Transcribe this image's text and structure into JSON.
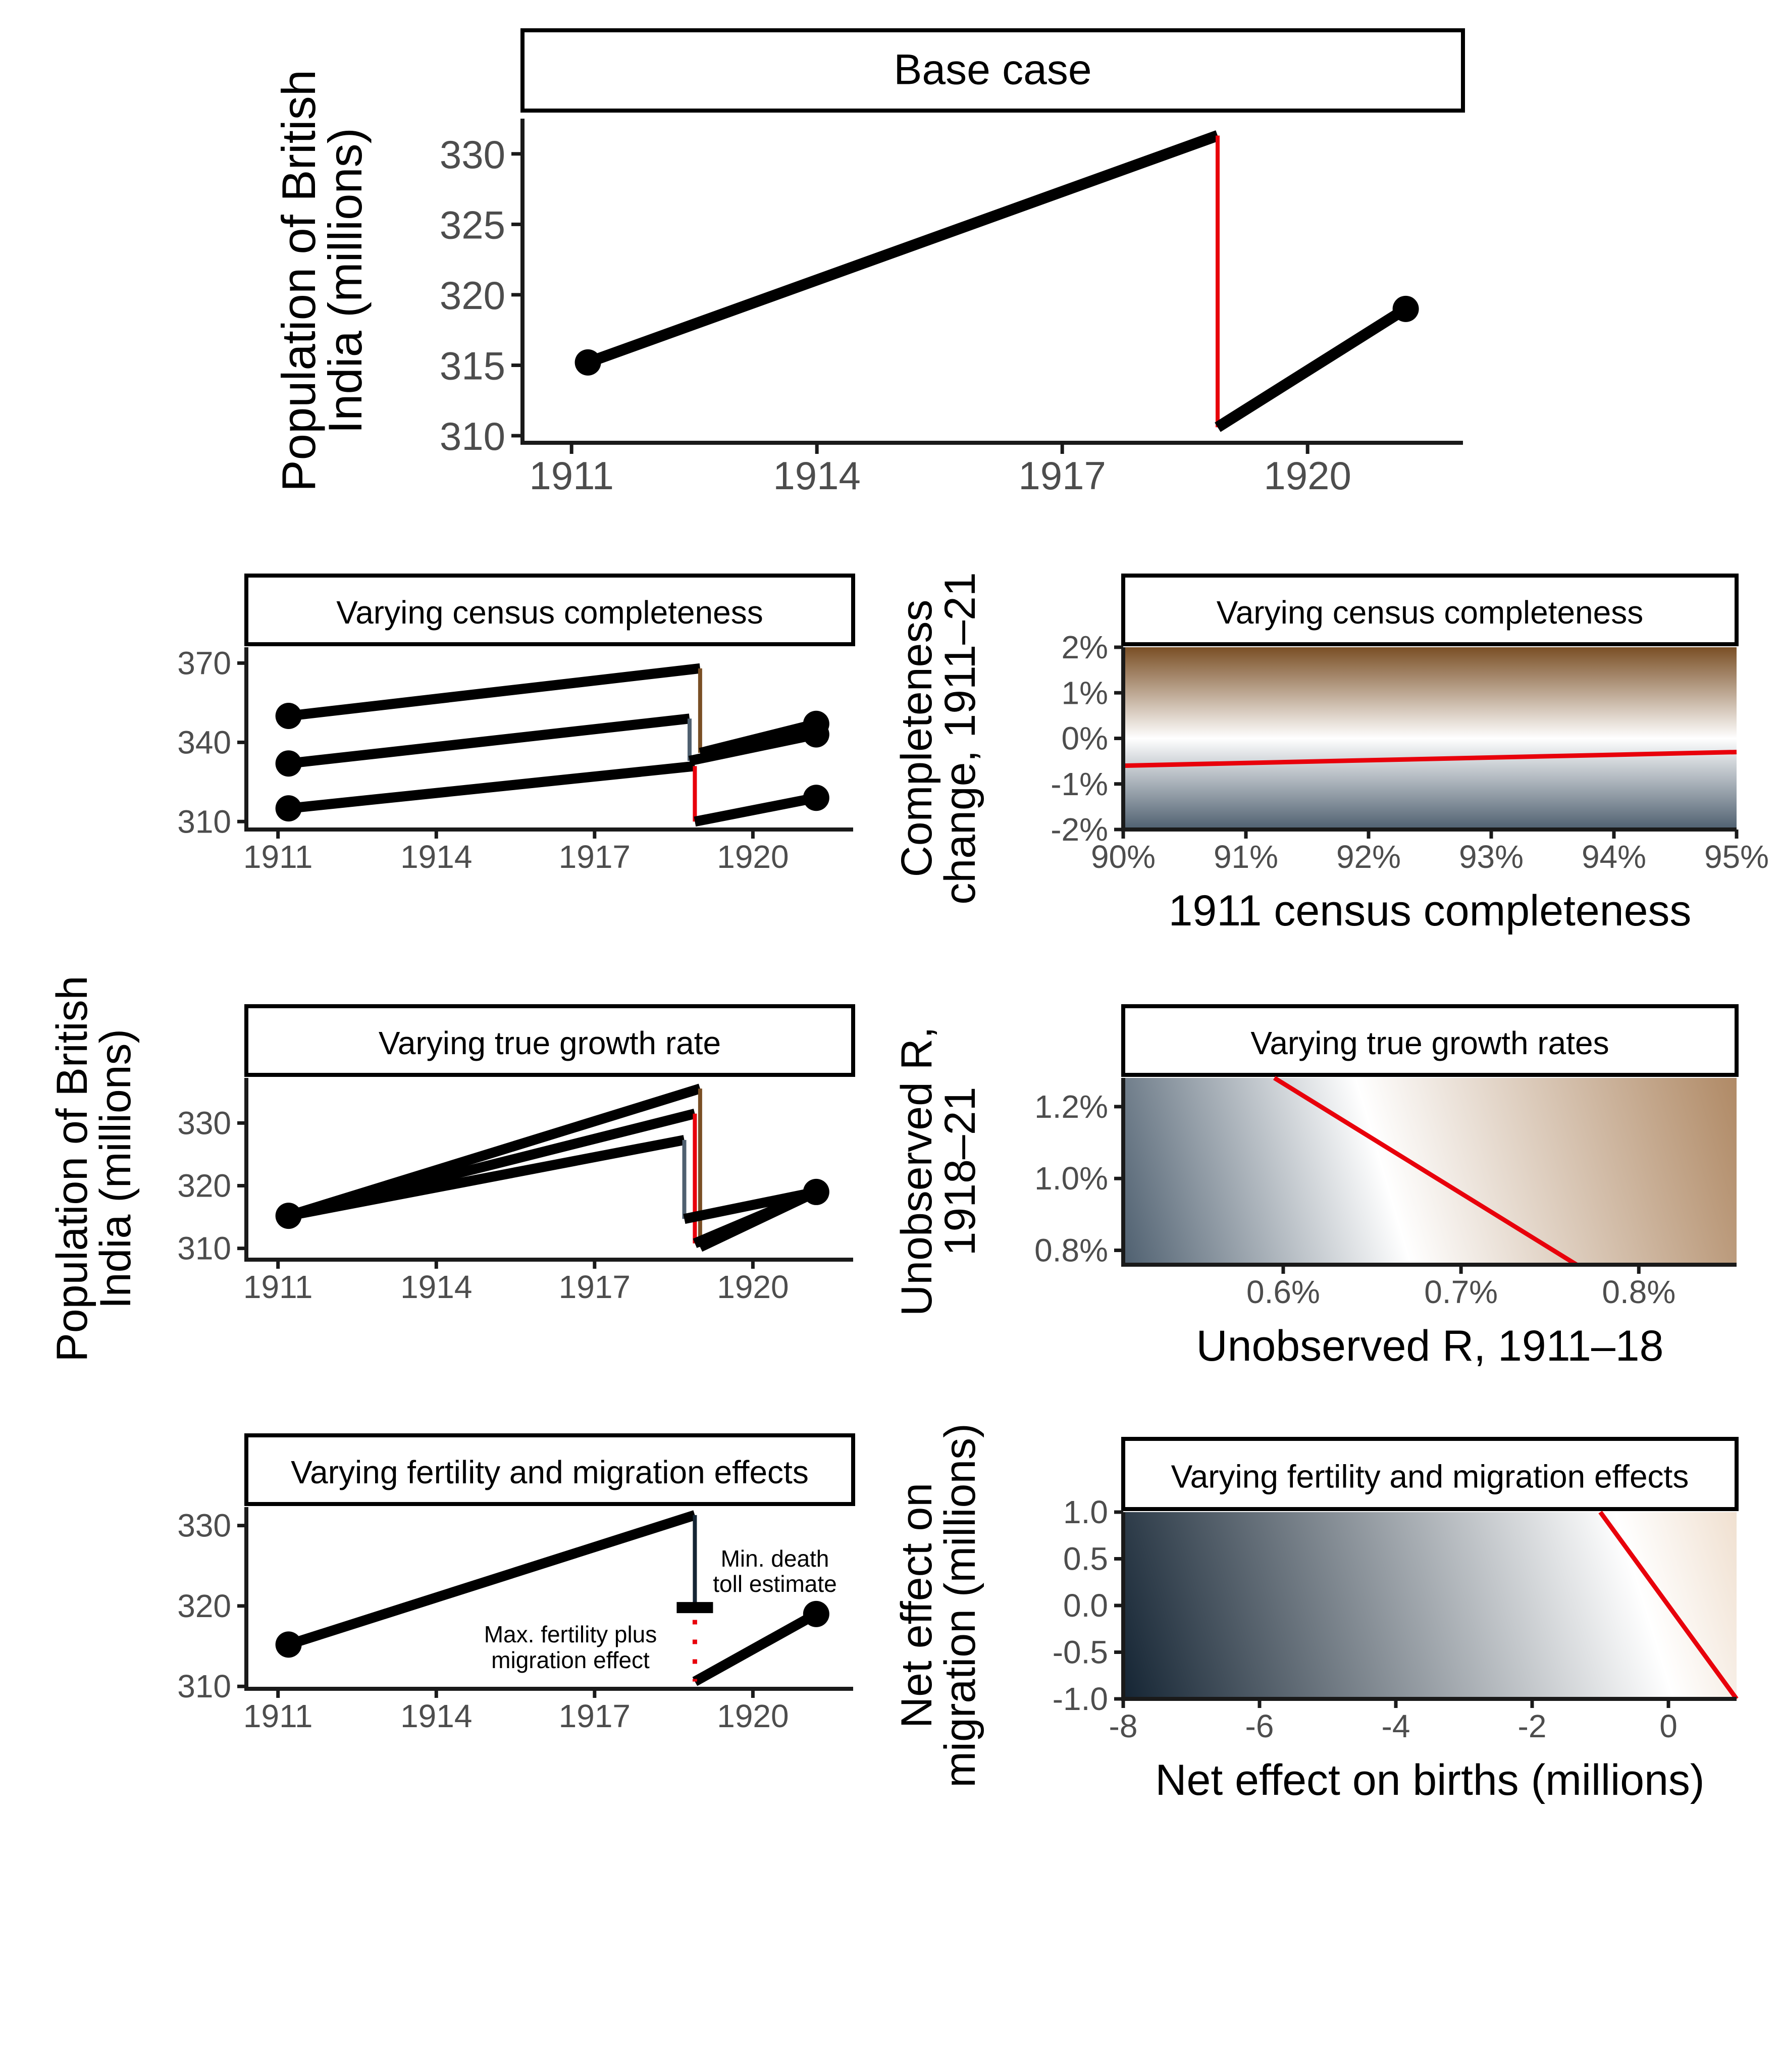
{
  "colors": {
    "line": "#000000",
    "drop": "#e8000b",
    "brown": "#7a4f25",
    "slate": "#4f6070",
    "navy": "#142433",
    "axis": "#1a1a1a",
    "tick_label": "#4d4d4d"
  },
  "chart_data": [
    {
      "id": "base",
      "type": "line",
      "strip_title": "Base case",
      "ylabel_lines": [
        "Population of British",
        "India (millions)"
      ],
      "xlim": [
        1910.4,
        1921.9
      ],
      "ylim": [
        309.5,
        332.5
      ],
      "x_ticks": [
        1911,
        1914,
        1917,
        1920
      ],
      "y_ticks": [
        310,
        315,
        320,
        325,
        330
      ],
      "x_tick_labels": [
        "1911",
        "1914",
        "1917",
        "1920"
      ],
      "y_tick_labels": [
        "310",
        "315",
        "320",
        "325",
        "330"
      ],
      "series": [
        {
          "points": [
            [
              1911.2,
              315.2
            ],
            [
              1918.9,
              331.3
            ]
          ],
          "role": "growth"
        },
        {
          "points": [
            [
              1918.9,
              331.3
            ],
            [
              1918.9,
              310.6
            ]
          ],
          "role": "drop"
        },
        {
          "points": [
            [
              1918.9,
              310.6
            ],
            [
              1921.2,
              319.0
            ]
          ],
          "role": "growth"
        }
      ],
      "markers": [
        [
          1911.2,
          315.2
        ],
        [
          1921.2,
          319.0
        ]
      ]
    },
    {
      "id": "completeness",
      "type": "line",
      "strip_title": "Varying census completeness",
      "xlim": [
        1910.4,
        1921.9
      ],
      "ylim": [
        307,
        376
      ],
      "x_ticks": [
        1911,
        1914,
        1917,
        1920
      ],
      "y_ticks": [
        310,
        340,
        370
      ],
      "x_tick_labels": [
        "1911",
        "1914",
        "1917",
        "1920"
      ],
      "y_tick_labels": [
        "310",
        "340",
        "370"
      ],
      "series": [
        {
          "points": [
            [
              1911.2,
              350
            ],
            [
              1919.0,
              368
            ]
          ],
          "role": "growth"
        },
        {
          "points": [
            [
              1919.0,
              368
            ],
            [
              1919.0,
              336
            ]
          ],
          "role": "brown"
        },
        {
          "points": [
            [
              1919.0,
              336
            ],
            [
              1921.2,
              347
            ]
          ],
          "role": "growth"
        },
        {
          "points": [
            [
              1911.2,
              332
            ],
            [
              1918.8,
              349
            ]
          ],
          "role": "growth"
        },
        {
          "points": [
            [
              1918.8,
              349
            ],
            [
              1918.8,
              333
            ]
          ],
          "role": "slate"
        },
        {
          "points": [
            [
              1918.8,
              333
            ],
            [
              1921.2,
              343
            ]
          ],
          "role": "growth"
        },
        {
          "points": [
            [
              1911.2,
              315
            ],
            [
              1918.9,
              331
            ]
          ],
          "role": "growth"
        },
        {
          "points": [
            [
              1918.9,
              331
            ],
            [
              1918.9,
              310
            ]
          ],
          "role": "drop"
        },
        {
          "points": [
            [
              1918.9,
              310
            ],
            [
              1921.2,
              319
            ]
          ],
          "role": "growth"
        }
      ],
      "markers": [
        [
          1911.2,
          350
        ],
        [
          1911.2,
          332
        ],
        [
          1911.2,
          315
        ],
        [
          1921.2,
          347
        ],
        [
          1921.2,
          343
        ],
        [
          1921.2,
          319
        ]
      ]
    },
    {
      "id": "growth",
      "type": "line",
      "strip_title": "Varying true growth rate",
      "xlim": [
        1910.4,
        1921.9
      ],
      "ylim": [
        308.2,
        337.2
      ],
      "x_ticks": [
        1911,
        1914,
        1917,
        1920
      ],
      "y_ticks": [
        310,
        320,
        330
      ],
      "x_tick_labels": [
        "1911",
        "1914",
        "1917",
        "1920"
      ],
      "y_tick_labels": [
        "310",
        "320",
        "330"
      ],
      "series": [
        {
          "points": [
            [
              1911.2,
              315.2
            ],
            [
              1919.0,
              335.5
            ]
          ],
          "role": "growth"
        },
        {
          "points": [
            [
              1919.0,
              335.5
            ],
            [
              1919.0,
              310.2
            ]
          ],
          "role": "brown"
        },
        {
          "points": [
            [
              1919.0,
              310.2
            ],
            [
              1921.2,
              319.0
            ]
          ],
          "role": "growth"
        },
        {
          "points": [
            [
              1911.2,
              315.2
            ],
            [
              1918.9,
              331.5
            ]
          ],
          "role": "growth"
        },
        {
          "points": [
            [
              1918.9,
              331.5
            ],
            [
              1918.9,
              310.8
            ]
          ],
          "role": "drop"
        },
        {
          "points": [
            [
              1918.9,
              310.8
            ],
            [
              1921.2,
              319.0
            ]
          ],
          "role": "growth"
        },
        {
          "points": [
            [
              1911.2,
              315.2
            ],
            [
              1918.7,
              327.3
            ]
          ],
          "role": "growth"
        },
        {
          "points": [
            [
              1918.7,
              327.3
            ],
            [
              1918.7,
              314.7
            ]
          ],
          "role": "slate"
        },
        {
          "points": [
            [
              1918.7,
              314.7
            ],
            [
              1921.2,
              319.0
            ]
          ],
          "role": "growth"
        }
      ],
      "markers": [
        [
          1911.2,
          315.2
        ],
        [
          1921.2,
          319.0
        ]
      ]
    },
    {
      "id": "fertility",
      "type": "line",
      "strip_title": "Varying fertility and migration effects",
      "xlim": [
        1910.4,
        1921.9
      ],
      "ylim": [
        309.7,
        332.3
      ],
      "x_ticks": [
        1911,
        1914,
        1917,
        1920
      ],
      "y_ticks": [
        310,
        320,
        330
      ],
      "x_tick_labels": [
        "1911",
        "1914",
        "1917",
        "1920"
      ],
      "y_tick_labels": [
        "310",
        "320",
        "330"
      ],
      "series": [
        {
          "points": [
            [
              1911.2,
              315.2
            ],
            [
              1918.9,
              331.3
            ]
          ],
          "role": "growth"
        },
        {
          "points": [
            [
              1918.9,
              331.3
            ],
            [
              1918.9,
              319.8
            ]
          ],
          "role": "navy"
        },
        {
          "points": [
            [
              1918.9,
              310.6
            ],
            [
              1921.2,
              319.0
            ]
          ],
          "role": "growth"
        }
      ],
      "markers": [
        [
          1911.2,
          315.2
        ],
        [
          1921.2,
          319.0
        ]
      ],
      "bar_y": 319.8,
      "dotted": {
        "x": 1918.9,
        "y_from": 319.4,
        "y_to": 310.6
      },
      "annotations": {
        "min_death": [
          "Min. death",
          "toll estimate"
        ],
        "max_fertility": [
          "Max. fertility plus",
          "migration effect"
        ]
      }
    },
    {
      "id": "heat_completeness",
      "type": "heatmap",
      "strip_title": "Varying census completeness",
      "xlabel": "1911 census completeness",
      "ylabel_lines": [
        "Completeness",
        "change, 1911–21"
      ],
      "xlim": [
        90,
        95
      ],
      "ylim": [
        -2,
        2
      ],
      "x_ticks": [
        90,
        91,
        92,
        93,
        94,
        95
      ],
      "y_ticks": [
        -2,
        -1,
        0,
        1,
        2
      ],
      "x_tick_labels": [
        "90%",
        "91%",
        "92%",
        "93%",
        "94%",
        "95%"
      ],
      "y_tick_labels": [
        "-2%",
        "-1%",
        "0%",
        "1%",
        "2%"
      ],
      "contour": [
        [
          90,
          -0.6
        ],
        [
          95,
          -0.3
        ]
      ]
    },
    {
      "id": "heat_growth",
      "type": "heatmap",
      "strip_title": "Varying true growth rates",
      "xlabel": "Unobserved R, 1911–18",
      "ylabel_lines": [
        "Unobserved R,",
        "1918–21"
      ],
      "xlim": [
        0.51,
        0.855
      ],
      "ylim": [
        0.76,
        1.28
      ],
      "x_ticks": [
        0.6,
        0.7,
        0.8
      ],
      "y_ticks": [
        0.8,
        1.0,
        1.2
      ],
      "x_tick_labels": [
        "0.6%",
        "0.7%",
        "0.8%"
      ],
      "y_tick_labels": [
        "0.8%",
        "1.0%",
        "1.2%"
      ],
      "contour": [
        [
          0.595,
          1.28
        ],
        [
          0.765,
          0.76
        ]
      ]
    },
    {
      "id": "heat_fertility",
      "type": "heatmap",
      "strip_title": "Varying fertility and migration effects",
      "xlabel": "Net effect on births (millions)",
      "ylabel_lines": [
        "Net effect on",
        "migration (millions)"
      ],
      "xlim": [
        -8,
        1
      ],
      "ylim": [
        -1,
        1
      ],
      "x_ticks": [
        -8,
        -6,
        -4,
        -2,
        0
      ],
      "y_ticks": [
        -1,
        -0.5,
        0,
        0.5,
        1
      ],
      "x_tick_labels": [
        "-8",
        "-6",
        "-4",
        "-2",
        "0"
      ],
      "y_tick_labels": [
        "-1.0",
        "-0.5",
        "0.0",
        "0.5",
        "1.0"
      ],
      "contour": [
        [
          -1.0,
          1.0
        ],
        [
          1.0,
          -1.0
        ]
      ]
    }
  ],
  "shared_ylabel_lines": [
    "Population of British",
    "India (millions)"
  ]
}
